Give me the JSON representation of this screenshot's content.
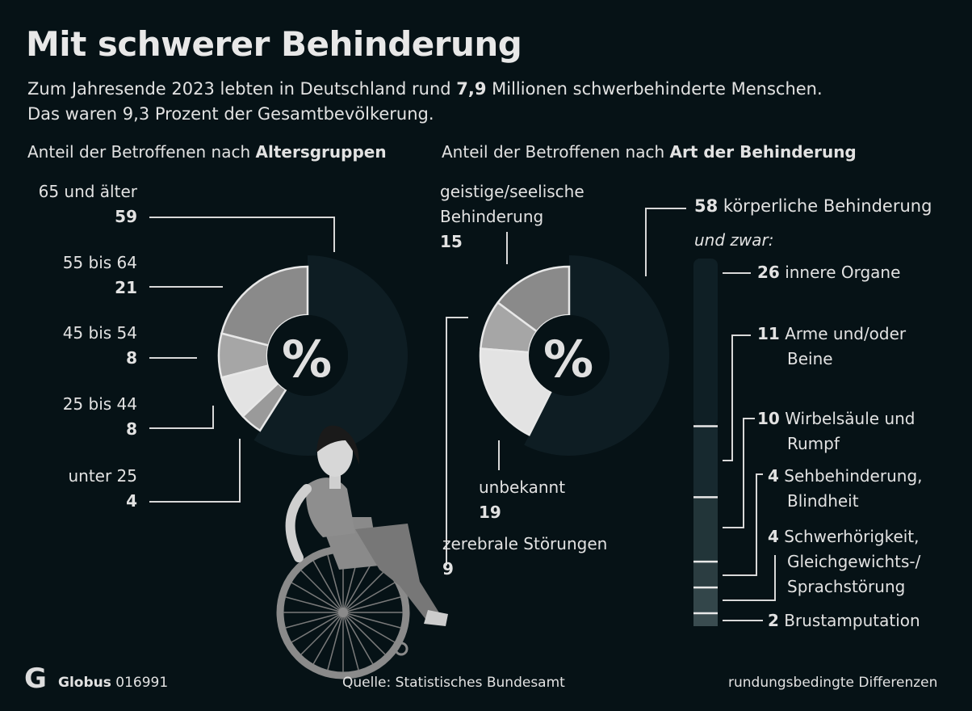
{
  "title": "Mit schwerer Behinderung",
  "subtitle": {
    "line1_pre": "Zum Jahresende 2023 lebten in Deutschland rund ",
    "line1_bold": "7,9",
    "line1_post": " Millionen schwerbehinderte Menschen.",
    "line2": "Das waren 9,3 Prozent der Gesamtbevölkerung."
  },
  "colors": {
    "background": "#061216",
    "dark_segment": "#0e1d23",
    "text": "#e6e6e6"
  },
  "chart_data": [
    {
      "type": "pie",
      "variant": "donut",
      "title_pre": "Anteil der Betroffenen nach ",
      "title_bold": "Altersgruppen",
      "center_label": "%",
      "unit": "%",
      "slices": [
        {
          "label": "65 und älter",
          "value": 59,
          "color": "#0e1d23"
        },
        {
          "label": "55 bis 64",
          "value": 21,
          "color": "#8a8a8a"
        },
        {
          "label": "45 bis 54",
          "value": 8,
          "color": "#a6a6a6"
        },
        {
          "label": "25 bis 44",
          "value": 8,
          "color": "#e3e3e3"
        },
        {
          "label": "unter 25",
          "value": 4,
          "color": "#9a9a9a"
        }
      ]
    },
    {
      "type": "pie",
      "variant": "donut",
      "title_pre": "Anteil der Betroffenen nach ",
      "title_bold": "Art der Behinderung",
      "center_label": "%",
      "unit": "%",
      "slices": [
        {
          "label": "körperliche Behinderung",
          "value": 58,
          "color": "#0e1d23"
        },
        {
          "label": "geistige/seelische Behinderung",
          "value": 15,
          "color": "#8a8a8a"
        },
        {
          "label": "zerebrale Störungen",
          "value": 9,
          "color": "#a6a6a6"
        },
        {
          "label": "unbekannt",
          "value": 19,
          "color": "#e3e3e3"
        }
      ]
    },
    {
      "type": "bar",
      "variant": "stacked-vertical",
      "title": "und zwar:",
      "parent": "körperliche Behinderung",
      "segments": [
        {
          "label": "innere Organe",
          "value": 26,
          "color": "#0f1f25"
        },
        {
          "label": "Arme und/oder Beine",
          "value": 11,
          "color": "#17292f"
        },
        {
          "label": "Wirbelsäule und Rumpf",
          "value": 10,
          "color": "#223539"
        },
        {
          "label": "Sehbehinderung, Blindheit",
          "value": 4,
          "color": "#2b3d41"
        },
        {
          "label": "Schwerhörigkeit, Gleichgewichts-/ Sprachstörung",
          "value": 4,
          "color": "#33464a"
        },
        {
          "label": "Brustamputation",
          "value": 2,
          "color": "#3a4c50"
        }
      ]
    }
  ],
  "labels": {
    "age": [
      {
        "name": "65 und älter",
        "value": "59"
      },
      {
        "name": "55 bis 64",
        "value": "21"
      },
      {
        "name": "45 bis 54",
        "value": "8"
      },
      {
        "name": "25 bis 44",
        "value": "8"
      },
      {
        "name": "unter 25",
        "value": "4"
      }
    ],
    "type": {
      "mental_l1": "geistige/seelische",
      "mental_l2": "Behinderung",
      "mental_v": "15",
      "unknown": "unbekannt",
      "unknown_v": "19",
      "cerebral": "zerebrale Störungen",
      "cerebral_v": "9",
      "physical_v": "58",
      "physical": "körperliche Behinderung",
      "und_zwar": "und zwar:"
    },
    "sub": [
      {
        "v": "26",
        "l1": "innere Organe",
        "l2": ""
      },
      {
        "v": "11",
        "l1": "Arme und/oder",
        "l2": "Beine"
      },
      {
        "v": "10",
        "l1": "Wirbelsäule und",
        "l2": "Rumpf"
      },
      {
        "v": "4",
        "l1": "Sehbehinderung,",
        "l2": "Blindheit"
      },
      {
        "v": "4",
        "l1": "Schwerhörigkeit,",
        "l2": "Gleichgewichts-/",
        "l3": "Sprachstörung"
      },
      {
        "v": "2",
        "l1": "Brustamputation",
        "l2": ""
      }
    ]
  },
  "footer": {
    "brand": "Globus",
    "number": "016991",
    "source": "Quelle: Statistisches Bundesamt",
    "note": "rundungsbedingte Differenzen"
  }
}
